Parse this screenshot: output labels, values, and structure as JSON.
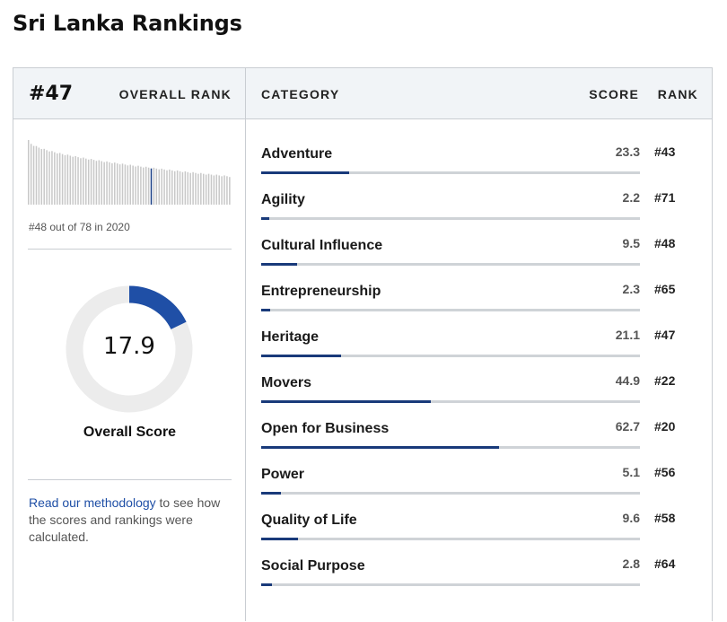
{
  "page": {
    "title": "Sri Lanka Rankings"
  },
  "summary": {
    "overall_rank": "#47",
    "overall_rank_label": "OVERALL RANK",
    "history_caption": "#48 out of 78 in 2020",
    "overall_score": "17.9",
    "overall_score_fraction": 0.179,
    "overall_score_label": "Overall Score",
    "methodology_link": "Read our methodology",
    "methodology_text": " to see how the scores and rankings were calculated."
  },
  "histogram": {
    "total_countries": 78,
    "highlight_rank": 48,
    "bar_color": "#c8c8c8",
    "highlight_color": "#1a3f86"
  },
  "table": {
    "headers": {
      "category": "CATEGORY",
      "score": "SCORE",
      "rank": "RANK"
    },
    "rows": [
      {
        "name": "Adventure",
        "score": "23.3",
        "rank": "#43",
        "value": 23.3
      },
      {
        "name": "Agility",
        "score": "2.2",
        "rank": "#71",
        "value": 2.2
      },
      {
        "name": "Cultural Influence",
        "score": "9.5",
        "rank": "#48",
        "value": 9.5
      },
      {
        "name": "Entrepreneurship",
        "score": "2.3",
        "rank": "#65",
        "value": 2.3
      },
      {
        "name": "Heritage",
        "score": "21.1",
        "rank": "#47",
        "value": 21.1
      },
      {
        "name": "Movers",
        "score": "44.9",
        "rank": "#22",
        "value": 44.9
      },
      {
        "name": "Open for Business",
        "score": "62.7",
        "rank": "#20",
        "value": 62.7
      },
      {
        "name": "Power",
        "score": "5.1",
        "rank": "#56",
        "value": 5.1
      },
      {
        "name": "Quality of Life",
        "score": "9.6",
        "rank": "#58",
        "value": 9.6
      },
      {
        "name": "Social Purpose",
        "score": "2.8",
        "rank": "#64",
        "value": 2.8
      }
    ]
  },
  "colors": {
    "accent": "#1f4fa6",
    "bar_fill": "#193a7a",
    "track": "#cfd3d7",
    "header_bg": "#f1f4f7",
    "donut_track": "#ececec",
    "donut_fill": "#1f4fa6"
  }
}
